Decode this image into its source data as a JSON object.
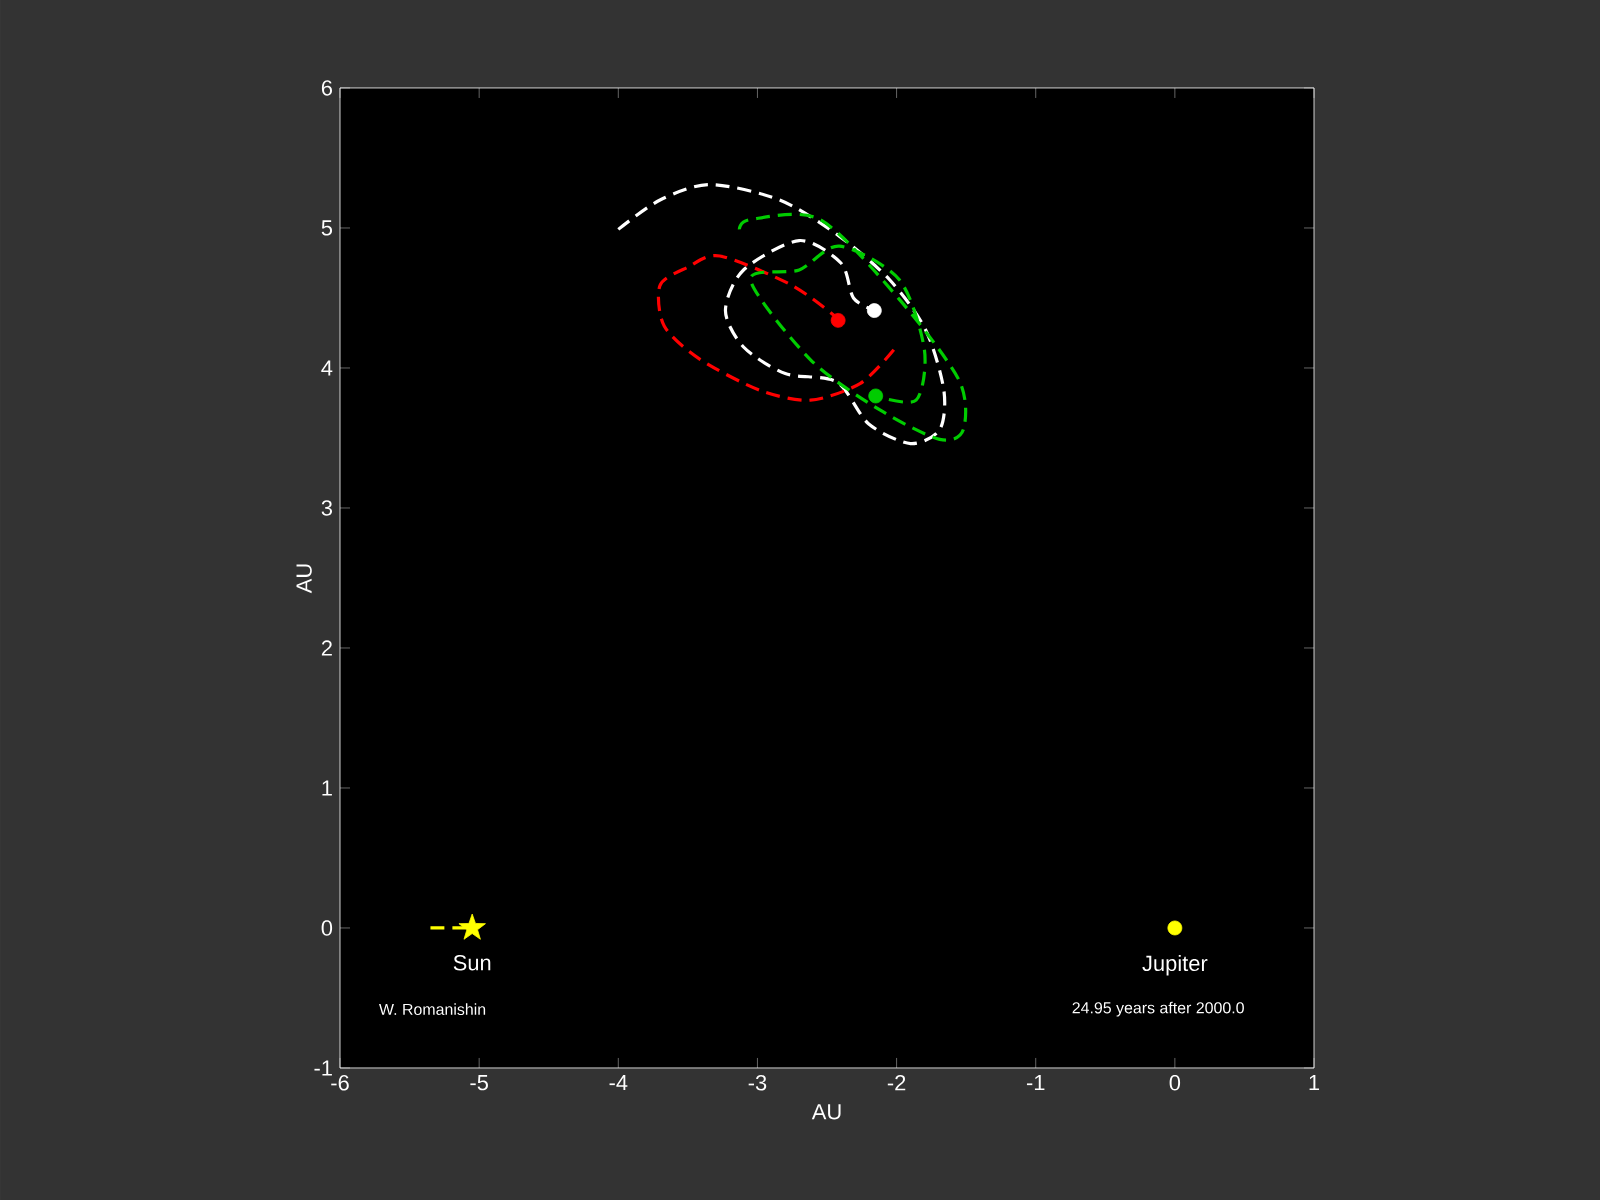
{
  "chart_data": {
    "type": "line",
    "xlabel": "AU",
    "ylabel": "AU",
    "xlim": [
      -6,
      1
    ],
    "ylim": [
      -1,
      6
    ],
    "xticks": [
      -6,
      -5,
      -4,
      -3,
      -2,
      -1,
      0,
      1
    ],
    "yticks": [
      -1,
      0,
      1,
      2,
      3,
      4,
      5,
      6
    ],
    "grid": false,
    "annotations": [
      {
        "text": "Sun",
        "x": -5.05,
        "y": 0
      },
      {
        "text": "Jupiter",
        "x": 0,
        "y": 0
      },
      "W. Romanishin",
      "24.95   years after 2000.0"
    ],
    "series": [
      {
        "color": "#ffffff",
        "line_style": "dashed",
        "x": [
          -4.0,
          -3.7,
          -3.34,
          -2.84,
          -2.41,
          -2.05,
          -1.79,
          -1.66,
          -1.69,
          -1.9,
          -2.2,
          -2.43,
          -2.8,
          -3.1,
          -3.23,
          -3.1,
          -2.7,
          -2.4,
          -2.31,
          -2.16
        ],
        "values": [
          4.99,
          5.2,
          5.31,
          5.2,
          4.94,
          4.63,
          4.27,
          3.84,
          3.56,
          3.46,
          3.6,
          3.9,
          3.96,
          4.15,
          4.41,
          4.7,
          4.91,
          4.75,
          4.5,
          4.41
        ]
      },
      {
        "color": "#ff0000",
        "line_style": "dashed",
        "x": [
          -2.02,
          -2.26,
          -2.62,
          -2.98,
          -3.41,
          -3.67,
          -3.7,
          -3.5,
          -3.27,
          -2.77,
          -2.48,
          -2.42
        ],
        "values": [
          4.13,
          3.89,
          3.77,
          3.84,
          4.06,
          4.3,
          4.59,
          4.72,
          4.8,
          4.6,
          4.4,
          4.34
        ]
      },
      {
        "color": "#00cc00",
        "line_style": "dashed",
        "x": [
          -3.13,
          -3.05,
          -2.55,
          -1.98,
          -1.55,
          -1.52,
          -1.69,
          -2.12,
          -2.62,
          -3.05,
          -2.7,
          -2.41,
          -1.98,
          -1.8,
          -1.86,
          -2.15
        ],
        "values": [
          4.99,
          5.06,
          5.06,
          4.49,
          3.91,
          3.56,
          3.49,
          3.7,
          4.06,
          4.63,
          4.7,
          4.87,
          4.63,
          4.13,
          3.77,
          3.8
        ]
      },
      {
        "type": "scatter",
        "color": "#ffffff",
        "marker": "circle",
        "x": [
          -2.16
        ],
        "values": [
          4.41
        ]
      },
      {
        "type": "scatter",
        "color": "#ff0000",
        "marker": "circle",
        "x": [
          -2.42
        ],
        "values": [
          4.34
        ]
      },
      {
        "type": "scatter",
        "color": "#00cc00",
        "marker": "circle",
        "x": [
          -2.15
        ],
        "values": [
          3.8
        ]
      },
      {
        "color": "#ffff00",
        "line_style": "dashed",
        "x": [
          -5.35,
          -5.05
        ],
        "values": [
          0,
          0
        ]
      },
      {
        "type": "scatter",
        "color": "#ffff00",
        "marker": "star",
        "x": [
          -5.05
        ],
        "values": [
          0
        ]
      },
      {
        "type": "scatter",
        "color": "#ffff00",
        "marker": "circle",
        "x": [
          0
        ],
        "values": [
          0
        ]
      }
    ]
  }
}
